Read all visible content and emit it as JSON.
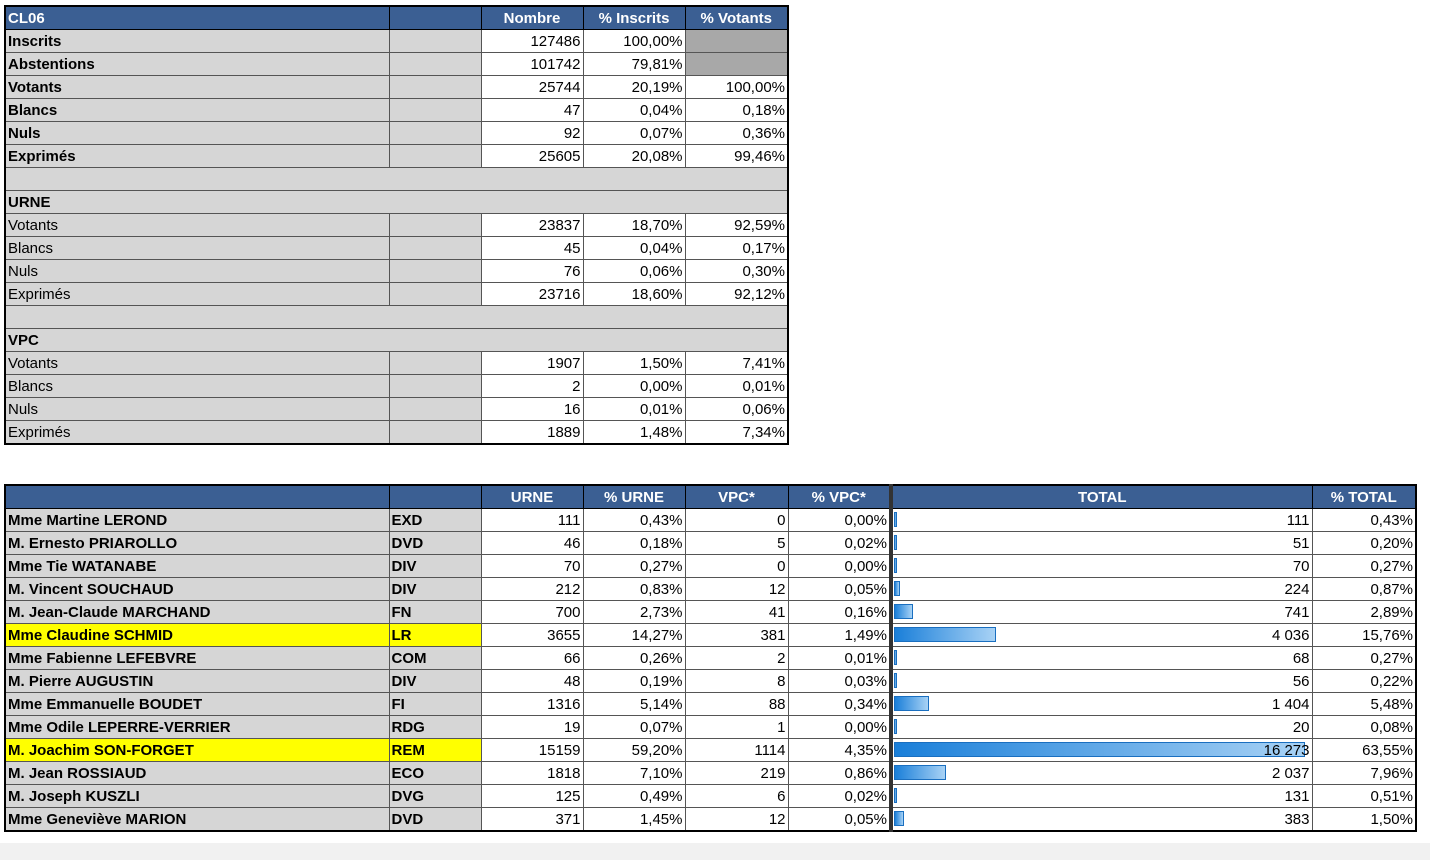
{
  "summary": {
    "headers": {
      "title": "CL06",
      "blank": "",
      "nombre": "Nombre",
      "pct_inscrits": "% Inscrits",
      "pct_votants": "% Votants"
    },
    "rows": [
      {
        "kind": "row",
        "label": "Inscrits",
        "bold": true,
        "nombre": "127486",
        "pct_inscrits": "100,00%",
        "pct_votants": "",
        "grey": true
      },
      {
        "kind": "row",
        "label": "Abstentions",
        "bold": true,
        "nombre": "101742",
        "pct_inscrits": "79,81%",
        "pct_votants": "",
        "grey": true
      },
      {
        "kind": "row",
        "label": "Votants",
        "bold": true,
        "nombre": "25744",
        "pct_inscrits": "20,19%",
        "pct_votants": "100,00%"
      },
      {
        "kind": "row",
        "label": "Blancs",
        "bold": true,
        "nombre": "47",
        "pct_inscrits": "0,04%",
        "pct_votants": "0,18%"
      },
      {
        "kind": "row",
        "label": "Nuls",
        "bold": true,
        "nombre": "92",
        "pct_inscrits": "0,07%",
        "pct_votants": "0,36%"
      },
      {
        "kind": "row",
        "label": "Exprimés",
        "bold": true,
        "nombre": "25605",
        "pct_inscrits": "20,08%",
        "pct_votants": "99,46%"
      },
      {
        "kind": "spacer"
      },
      {
        "kind": "section",
        "label": "URNE"
      },
      {
        "kind": "row",
        "label": "Votants",
        "bold": false,
        "nombre": "23837",
        "pct_inscrits": "18,70%",
        "pct_votants": "92,59%"
      },
      {
        "kind": "row",
        "label": "Blancs",
        "bold": false,
        "nombre": "45",
        "pct_inscrits": "0,04%",
        "pct_votants": "0,17%"
      },
      {
        "kind": "row",
        "label": "Nuls",
        "bold": false,
        "nombre": "76",
        "pct_inscrits": "0,06%",
        "pct_votants": "0,30%"
      },
      {
        "kind": "row",
        "label": "Exprimés",
        "bold": false,
        "nombre": "23716",
        "pct_inscrits": "18,60%",
        "pct_votants": "92,12%"
      },
      {
        "kind": "spacer"
      },
      {
        "kind": "section",
        "label": "VPC"
      },
      {
        "kind": "row",
        "label": "Votants",
        "bold": false,
        "nombre": "1907",
        "pct_inscrits": "1,50%",
        "pct_votants": "7,41%"
      },
      {
        "kind": "row",
        "label": "Blancs",
        "bold": false,
        "nombre": "2",
        "pct_inscrits": "0,00%",
        "pct_votants": "0,01%"
      },
      {
        "kind": "row",
        "label": "Nuls",
        "bold": false,
        "nombre": "16",
        "pct_inscrits": "0,01%",
        "pct_votants": "0,06%"
      },
      {
        "kind": "row",
        "label": "Exprimés",
        "bold": false,
        "nombre": "1889",
        "pct_inscrits": "1,48%",
        "pct_votants": "7,34%"
      }
    ]
  },
  "results": {
    "headers": {
      "candidate": "",
      "nuance": "",
      "urne": "URNE",
      "pct_urne": "% URNE",
      "vpc": "VPC*",
      "pct_vpc": "% VPC*",
      "total": "TOTAL",
      "pct_total": "% TOTAL"
    },
    "bar_color": "#1a7fd9",
    "highlight_color": "#ffff00",
    "rows": [
      {
        "candidate": "Mme Martine LEROND",
        "nuance": "EXD",
        "urne": "111",
        "pct_urne": "0,43%",
        "vpc": "0",
        "pct_vpc": "0,00%",
        "total": "111",
        "pct_total": "0,43%",
        "share": 0.43,
        "highlight": false
      },
      {
        "candidate": "M. Ernesto PRIAROLLO",
        "nuance": "DVD",
        "urne": "46",
        "pct_urne": "0,18%",
        "vpc": "5",
        "pct_vpc": "0,02%",
        "total": "51",
        "pct_total": "0,20%",
        "share": 0.2,
        "highlight": false
      },
      {
        "candidate": "Mme Tie WATANABE",
        "nuance": "DIV",
        "urne": "70",
        "pct_urne": "0,27%",
        "vpc": "0",
        "pct_vpc": "0,00%",
        "total": "70",
        "pct_total": "0,27%",
        "share": 0.27,
        "highlight": false
      },
      {
        "candidate": "M. Vincent SOUCHAUD",
        "nuance": "DIV",
        "urne": "212",
        "pct_urne": "0,83%",
        "vpc": "12",
        "pct_vpc": "0,05%",
        "total": "224",
        "pct_total": "0,87%",
        "share": 0.87,
        "highlight": false
      },
      {
        "candidate": "M. Jean-Claude MARCHAND",
        "nuance": "FN",
        "urne": "700",
        "pct_urne": "2,73%",
        "vpc": "41",
        "pct_vpc": "0,16%",
        "total": "741",
        "pct_total": "2,89%",
        "share": 2.89,
        "highlight": false
      },
      {
        "candidate": "Mme Claudine SCHMID",
        "nuance": "LR",
        "urne": "3655",
        "pct_urne": "14,27%",
        "vpc": "381",
        "pct_vpc": "1,49%",
        "total": "4 036",
        "pct_total": "15,76%",
        "share": 15.76,
        "highlight": true
      },
      {
        "candidate": "Mme Fabienne LEFEBVRE",
        "nuance": "COM",
        "urne": "66",
        "pct_urne": "0,26%",
        "vpc": "2",
        "pct_vpc": "0,01%",
        "total": "68",
        "pct_total": "0,27%",
        "share": 0.27,
        "highlight": false
      },
      {
        "candidate": "M. Pierre AUGUSTIN",
        "nuance": "DIV",
        "urne": "48",
        "pct_urne": "0,19%",
        "vpc": "8",
        "pct_vpc": "0,03%",
        "total": "56",
        "pct_total": "0,22%",
        "share": 0.22,
        "highlight": false
      },
      {
        "candidate": "Mme Emmanuelle BOUDET",
        "nuance": "FI",
        "urne": "1316",
        "pct_urne": "5,14%",
        "vpc": "88",
        "pct_vpc": "0,34%",
        "total": "1 404",
        "pct_total": "5,48%",
        "share": 5.48,
        "highlight": false
      },
      {
        "candidate": "Mme Odile LEPERRE-VERRIER",
        "nuance": "RDG",
        "urne": "19",
        "pct_urne": "0,07%",
        "vpc": "1",
        "pct_vpc": "0,00%",
        "total": "20",
        "pct_total": "0,08%",
        "share": 0.08,
        "highlight": false
      },
      {
        "candidate": "M. Joachim SON-FORGET",
        "nuance": "REM",
        "urne": "15159",
        "pct_urne": "59,20%",
        "vpc": "1114",
        "pct_vpc": "4,35%",
        "total": "16 273",
        "pct_total": "63,55%",
        "share": 63.55,
        "highlight": true
      },
      {
        "candidate": "M. Jean ROSSIAUD",
        "nuance": "ECO",
        "urne": "1818",
        "pct_urne": "7,10%",
        "vpc": "219",
        "pct_vpc": "0,86%",
        "total": "2 037",
        "pct_total": "7,96%",
        "share": 7.96,
        "highlight": false
      },
      {
        "candidate": "M. Joseph KUSZLI",
        "nuance": "DVG",
        "urne": "125",
        "pct_urne": "0,49%",
        "vpc": "6",
        "pct_vpc": "0,02%",
        "total": "131",
        "pct_total": "0,51%",
        "share": 0.51,
        "highlight": false
      },
      {
        "candidate": "Mme Geneviève MARION",
        "nuance": "DVD",
        "urne": "371",
        "pct_urne": "1,45%",
        "vpc": "12",
        "pct_vpc": "0,05%",
        "total": "383",
        "pct_total": "1,50%",
        "share": 1.5,
        "highlight": false
      }
    ]
  }
}
